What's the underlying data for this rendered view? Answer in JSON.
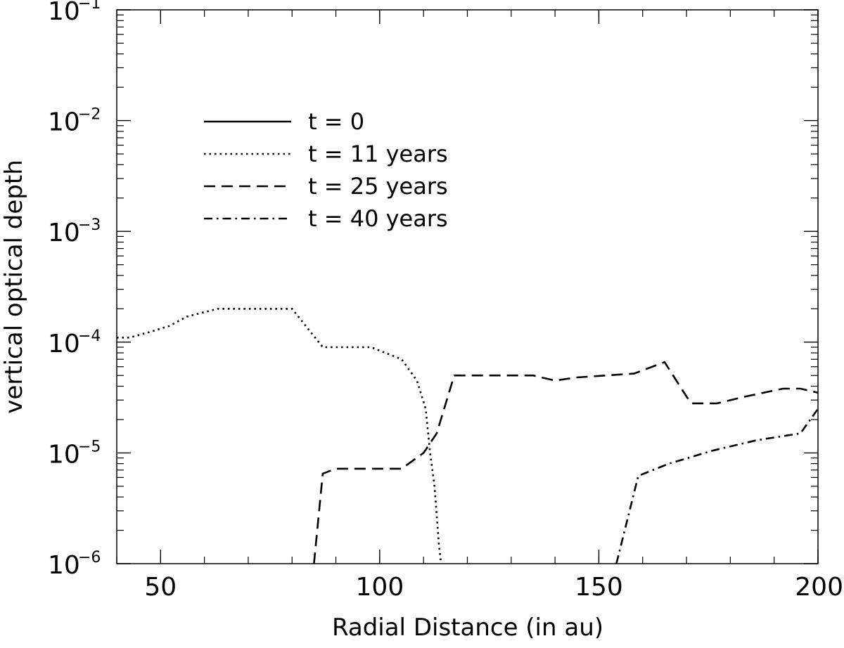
{
  "chart_data": {
    "type": "line",
    "title": "",
    "xlabel": "Radial Distance (in au)",
    "ylabel": "vertical optical depth",
    "xlim": [
      40,
      200
    ],
    "ylim": [
      1e-06,
      0.1
    ],
    "yscale": "log",
    "xticks": [
      50,
      100,
      150,
      200
    ],
    "xtick_labels": [
      "50",
      "100",
      "150",
      "200"
    ],
    "yticks": [
      {
        "value": 1e-06,
        "base": "10",
        "exp": "−6"
      },
      {
        "value": 1e-05,
        "base": "10",
        "exp": "−5"
      },
      {
        "value": 0.0001,
        "base": "10",
        "exp": "−4"
      },
      {
        "value": 0.001,
        "base": "10",
        "exp": "−3"
      },
      {
        "value": 0.01,
        "base": "10",
        "exp": "−2"
      },
      {
        "value": 0.1,
        "base": "10",
        "exp": "−1"
      }
    ],
    "legend_position": "upper-left",
    "series": [
      {
        "name": "t = 0",
        "dash": "solid",
        "points": []
      },
      {
        "name": "t = 11 years",
        "dash": "dotted",
        "points": [
          [
            40,
            0.00011
          ],
          [
            43,
            0.00011
          ],
          [
            48,
            0.000125
          ],
          [
            52,
            0.00014
          ],
          [
            56,
            0.00017
          ],
          [
            63,
            0.0002
          ],
          [
            80,
            0.0002
          ],
          [
            87,
            9e-05
          ],
          [
            98,
            9e-05
          ],
          [
            105,
            7e-05
          ],
          [
            108.5,
            4.5e-05
          ],
          [
            110.5,
            2.5e-05
          ],
          [
            111.5,
            1e-05
          ],
          [
            112.5,
            5e-06
          ],
          [
            113.5,
            1.5e-06
          ],
          [
            114,
            1e-06
          ]
        ]
      },
      {
        "name": "t = 25 years",
        "dash": "dashed",
        "points": [
          [
            85,
            1e-06
          ],
          [
            87,
            6.5e-06
          ],
          [
            90,
            7.2e-06
          ],
          [
            105,
            7.2e-06
          ],
          [
            110,
            1e-05
          ],
          [
            113,
            1.5e-05
          ],
          [
            117,
            5e-05
          ],
          [
            135,
            5e-05
          ],
          [
            140,
            4.5e-05
          ],
          [
            145,
            4.8e-05
          ],
          [
            158,
            5.2e-05
          ],
          [
            165,
            6.6e-05
          ],
          [
            171,
            2.8e-05
          ],
          [
            177,
            2.8e-05
          ],
          [
            183,
            3.2e-05
          ],
          [
            192,
            3.8e-05
          ],
          [
            196,
            3.8e-05
          ],
          [
            200,
            3.5e-05
          ]
        ]
      },
      {
        "name": "t = 40 years",
        "dash": "dashdot",
        "points": [
          [
            154,
            1e-06
          ],
          [
            159,
            6.2e-06
          ],
          [
            166,
            8e-06
          ],
          [
            176,
            1.05e-05
          ],
          [
            186,
            1.3e-05
          ],
          [
            196,
            1.5e-05
          ],
          [
            200,
            2.5e-05
          ]
        ]
      }
    ]
  }
}
